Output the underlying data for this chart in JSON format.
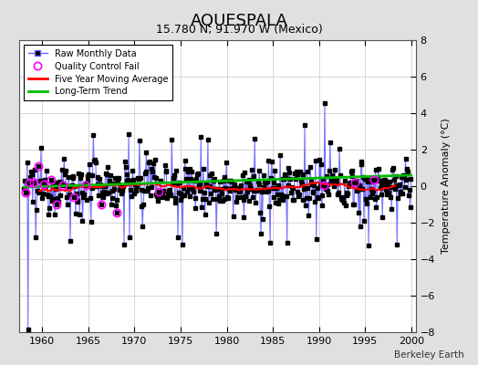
{
  "title": "AQUESPALA",
  "subtitle": "15.780 N, 91.970 W (Mexico)",
  "ylabel": "Temperature Anomaly (°C)",
  "watermark": "Berkeley Earth",
  "xlim": [
    1957.5,
    2000.5
  ],
  "ylim": [
    -8,
    8
  ],
  "yticks": [
    -8,
    -6,
    -4,
    -2,
    0,
    2,
    4,
    6,
    8
  ],
  "xticks": [
    1960,
    1965,
    1970,
    1975,
    1980,
    1985,
    1990,
    1995,
    2000
  ],
  "bg_color": "#e0e0e0",
  "plot_bg_color": "#ffffff",
  "raw_line_color": "#6666ff",
  "raw_dot_color": "#000000",
  "qc_fail_color": "#ff00ff",
  "moving_avg_color": "#ff0000",
  "trend_color": "#00bb00",
  "legend_loc": "upper left",
  "title_fontsize": 13,
  "subtitle_fontsize": 9,
  "seed": 12345
}
